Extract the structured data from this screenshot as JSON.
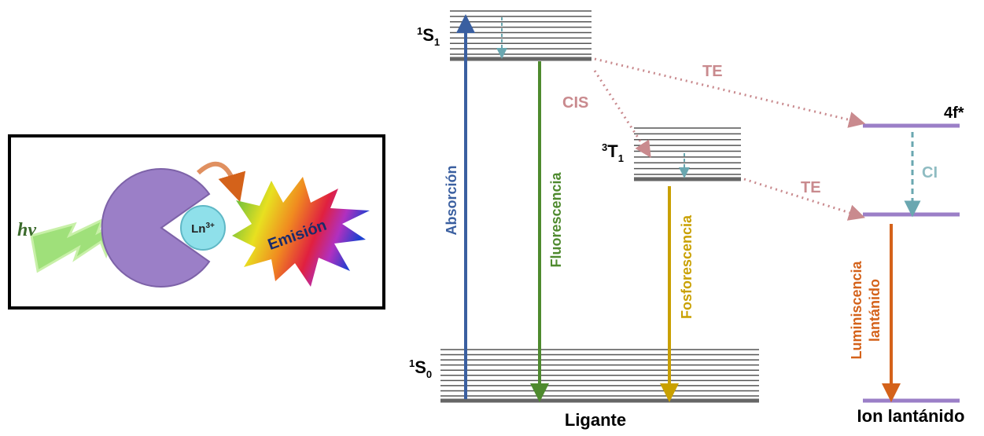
{
  "left_panel": {
    "photon": "hν",
    "ion": {
      "base": "Ln",
      "sup": "3+"
    },
    "emission": "Emisión"
  },
  "levels": {
    "s1": {
      "sup": "1",
      "base": "S",
      "sub": "1"
    },
    "t1": {
      "sup": "3",
      "base": "T",
      "sub": "1"
    },
    "s0": {
      "sup": "1",
      "base": "S",
      "sub": "0"
    },
    "f_excited": "4f*"
  },
  "transitions": {
    "absorption": "Absorción",
    "fluorescence": "Fluorescencia",
    "phosphorescence": "Fosforescencia",
    "isc": "CIS",
    "energy_transfer_1": "TE",
    "energy_transfer_2": "TE",
    "internal_conversion": "CI",
    "lanthanide_luminescence": [
      "Luminiscencia",
      "lantánido"
    ]
  },
  "footers": {
    "ligand": "Ligante",
    "lanthanide_ion": "Ion lantánido"
  }
}
